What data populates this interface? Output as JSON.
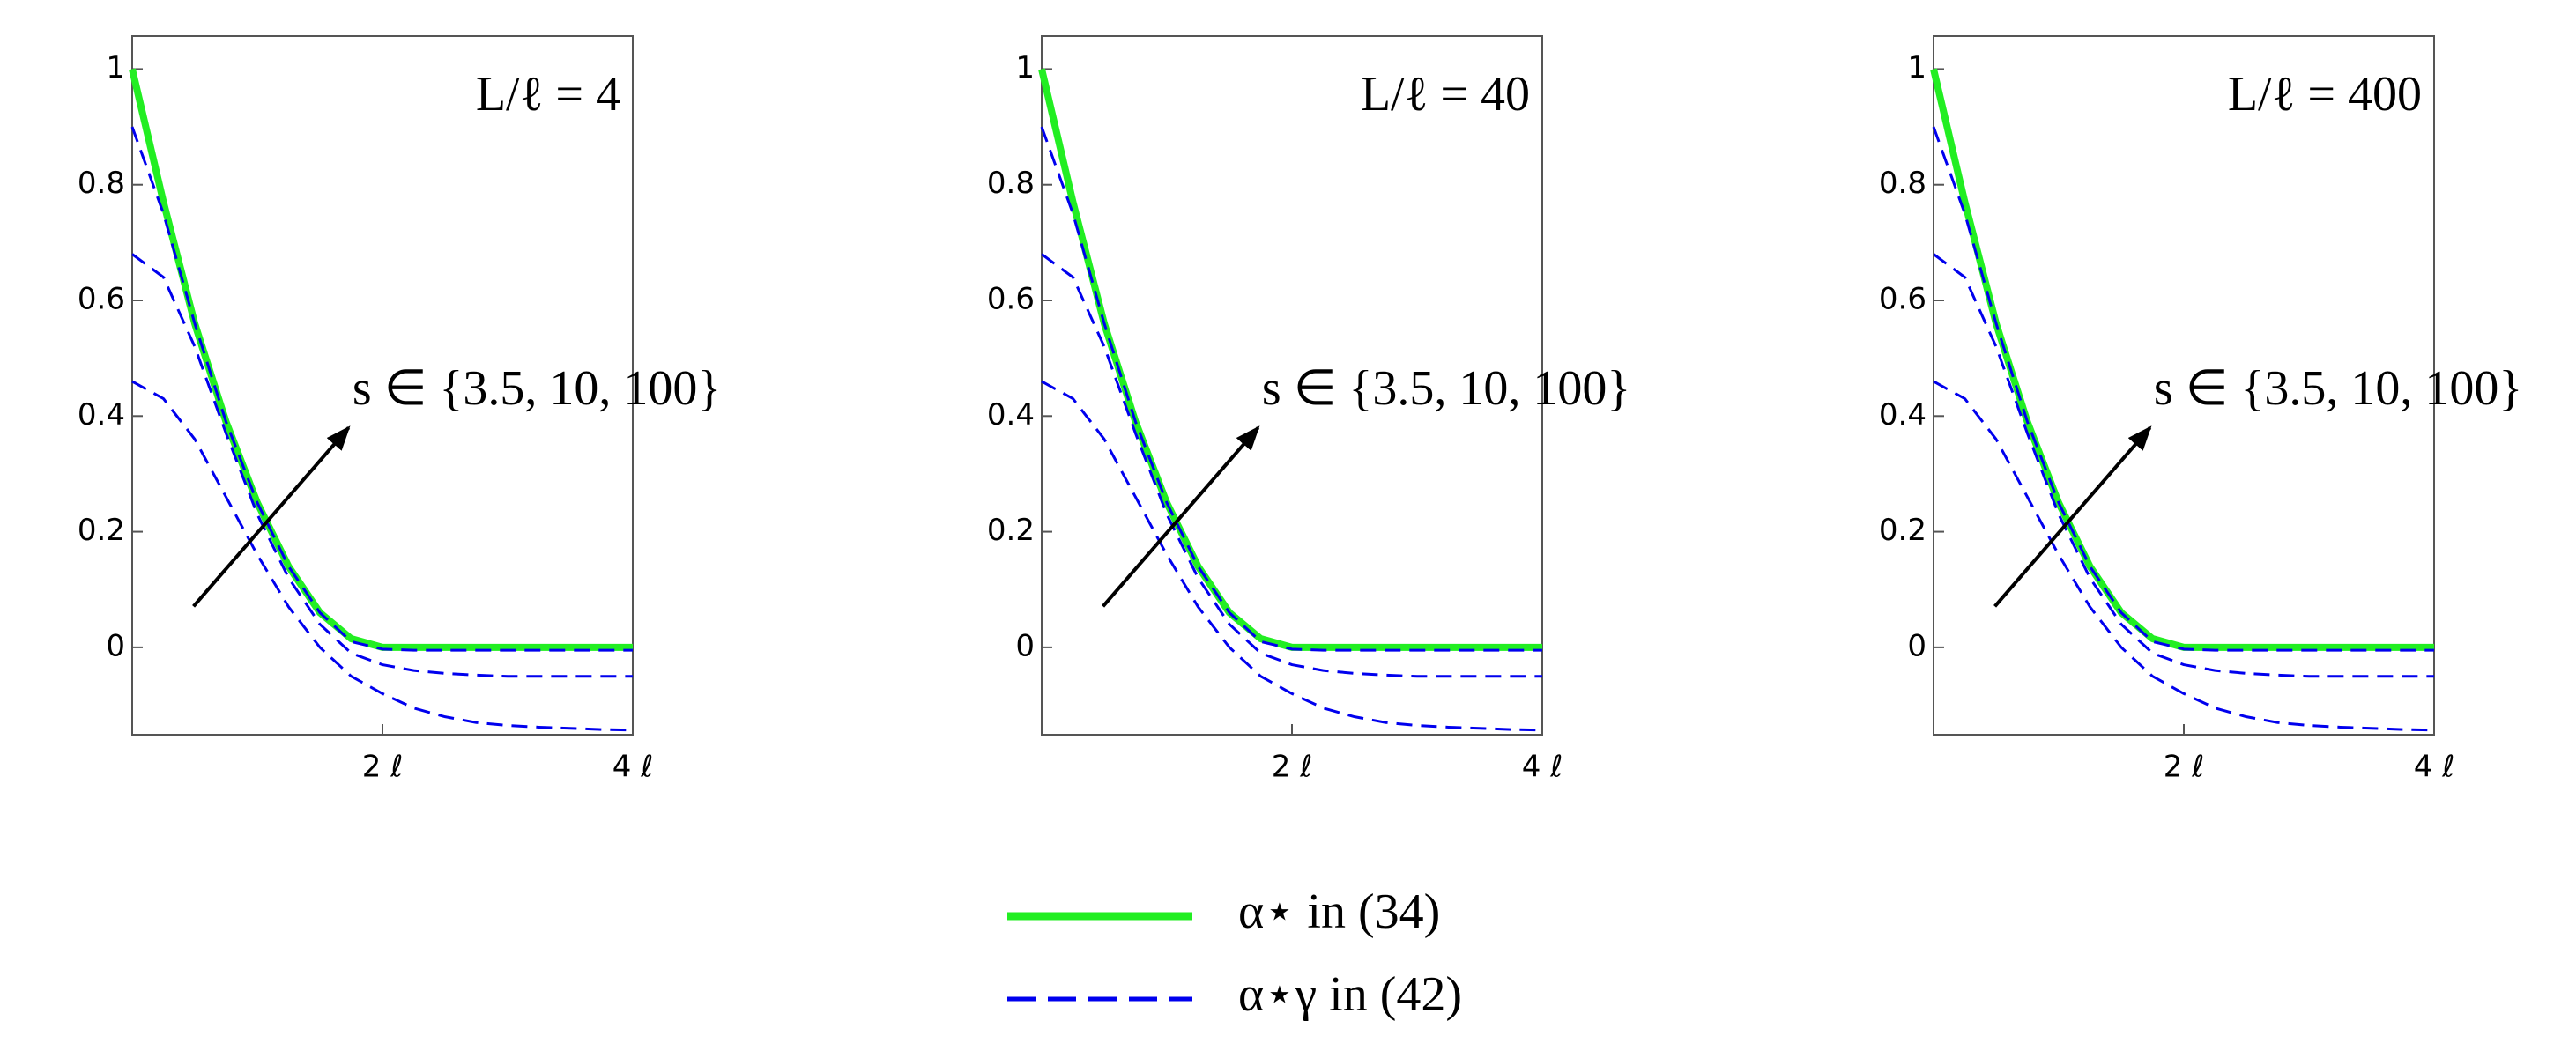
{
  "chart_data": [
    {
      "type": "line",
      "annotation": "L/ℓ = 4",
      "arrow_label": "s ∈ {3.5, 10, 100}",
      "x": [
        0,
        0.25,
        0.5,
        0.75,
        1,
        1.25,
        1.5,
        1.75,
        2,
        2.25,
        2.5,
        2.75,
        3,
        3.25,
        3.5,
        3.75,
        4
      ],
      "xlim": [
        0,
        4
      ],
      "ylim": [
        -0.151,
        1.057
      ],
      "xticks": [
        {
          "value": 2,
          "label": "2 ℓ"
        },
        {
          "value": 4,
          "label": "4 ℓ"
        }
      ],
      "yticks": [
        0,
        0.2,
        0.4,
        0.6,
        0.8,
        1
      ],
      "series": [
        {
          "name": "α⋆ in (34)",
          "color": "#22ee22",
          "values": [
            1,
            0.77,
            0.56,
            0.39,
            0.25,
            0.14,
            0.06,
            0.015,
            0,
            0,
            0,
            0,
            0,
            0,
            0,
            0,
            0
          ]
        },
        {
          "name": "α⋆γ in (42)",
          "color": "#0000ee",
          "values": [
            0.9,
            0.75,
            0.56,
            0.39,
            0.25,
            0.14,
            0.06,
            0.01,
            -0.003,
            -0.005,
            -0.005,
            -0.005,
            -0.005,
            -0.005,
            -0.005,
            -0.005,
            -0.005
          ]
        },
        {
          "color": "#0000ee",
          "values": [
            0.68,
            0.64,
            0.52,
            0.37,
            0.23,
            0.12,
            0.04,
            -0.01,
            -0.03,
            -0.04,
            -0.045,
            -0.048,
            -0.05,
            -0.05,
            -0.05,
            -0.05,
            -0.05
          ]
        },
        {
          "color": "#0000ee",
          "values": [
            0.46,
            0.43,
            0.36,
            0.26,
            0.16,
            0.07,
            0,
            -0.05,
            -0.08,
            -0.105,
            -0.12,
            -0.13,
            -0.135,
            -0.138,
            -0.14,
            -0.142,
            -0.143
          ]
        }
      ]
    },
    {
      "type": "line",
      "annotation": "L/ℓ = 40",
      "arrow_label": "s ∈ {3.5, 10, 100}",
      "x": [
        0,
        0.25,
        0.5,
        0.75,
        1,
        1.25,
        1.5,
        1.75,
        2,
        2.25,
        2.5,
        2.75,
        3,
        3.25,
        3.5,
        3.75,
        4
      ],
      "xlim": [
        0,
        4
      ],
      "ylim": [
        -0.151,
        1.057
      ],
      "xticks": [
        {
          "value": 2,
          "label": "2 ℓ"
        },
        {
          "value": 4,
          "label": "4 ℓ"
        }
      ],
      "yticks": [
        0,
        0.2,
        0.4,
        0.6,
        0.8,
        1
      ],
      "series": [
        {
          "name": "α⋆ in (34)",
          "color": "#22ee22",
          "values": [
            1,
            0.77,
            0.56,
            0.39,
            0.25,
            0.14,
            0.06,
            0.015,
            0,
            0,
            0,
            0,
            0,
            0,
            0,
            0,
            0
          ]
        },
        {
          "name": "α⋆γ in (42)",
          "color": "#0000ee",
          "values": [
            0.9,
            0.75,
            0.56,
            0.39,
            0.25,
            0.14,
            0.06,
            0.01,
            -0.003,
            -0.005,
            -0.005,
            -0.005,
            -0.005,
            -0.005,
            -0.005,
            -0.005,
            -0.005
          ]
        },
        {
          "color": "#0000ee",
          "values": [
            0.68,
            0.64,
            0.52,
            0.37,
            0.23,
            0.12,
            0.04,
            -0.01,
            -0.03,
            -0.04,
            -0.045,
            -0.048,
            -0.05,
            -0.05,
            -0.05,
            -0.05,
            -0.05
          ]
        },
        {
          "color": "#0000ee",
          "values": [
            0.46,
            0.43,
            0.36,
            0.26,
            0.16,
            0.07,
            0,
            -0.05,
            -0.08,
            -0.105,
            -0.12,
            -0.13,
            -0.135,
            -0.138,
            -0.14,
            -0.142,
            -0.143
          ]
        }
      ]
    },
    {
      "type": "line",
      "annotation": "L/ℓ = 400",
      "arrow_label": "s ∈ {3.5, 10, 100}",
      "x": [
        0,
        0.25,
        0.5,
        0.75,
        1,
        1.25,
        1.5,
        1.75,
        2,
        2.25,
        2.5,
        2.75,
        3,
        3.25,
        3.5,
        3.75,
        4
      ],
      "xlim": [
        0,
        4
      ],
      "ylim": [
        -0.151,
        1.057
      ],
      "xticks": [
        {
          "value": 2,
          "label": "2 ℓ"
        },
        {
          "value": 4,
          "label": "4 ℓ"
        }
      ],
      "yticks": [
        0,
        0.2,
        0.4,
        0.6,
        0.8,
        1
      ],
      "series": [
        {
          "name": "α⋆ in (34)",
          "color": "#22ee22",
          "values": [
            1,
            0.77,
            0.56,
            0.39,
            0.25,
            0.14,
            0.06,
            0.015,
            0,
            0,
            0,
            0,
            0,
            0,
            0,
            0,
            0
          ]
        },
        {
          "name": "α⋆γ in (42)",
          "color": "#0000ee",
          "values": [
            0.9,
            0.75,
            0.56,
            0.39,
            0.25,
            0.14,
            0.06,
            0.01,
            -0.003,
            -0.005,
            -0.005,
            -0.005,
            -0.005,
            -0.005,
            -0.005,
            -0.005,
            -0.005
          ]
        },
        {
          "color": "#0000ee",
          "values": [
            0.68,
            0.64,
            0.52,
            0.37,
            0.23,
            0.12,
            0.04,
            -0.01,
            -0.03,
            -0.04,
            -0.045,
            -0.048,
            -0.05,
            -0.05,
            -0.05,
            -0.05,
            -0.05
          ]
        },
        {
          "color": "#0000ee",
          "values": [
            0.46,
            0.43,
            0.36,
            0.26,
            0.16,
            0.07,
            0,
            -0.05,
            -0.08,
            -0.105,
            -0.12,
            -0.13,
            -0.135,
            -0.138,
            -0.14,
            -0.142,
            -0.143
          ]
        }
      ]
    }
  ]
}
